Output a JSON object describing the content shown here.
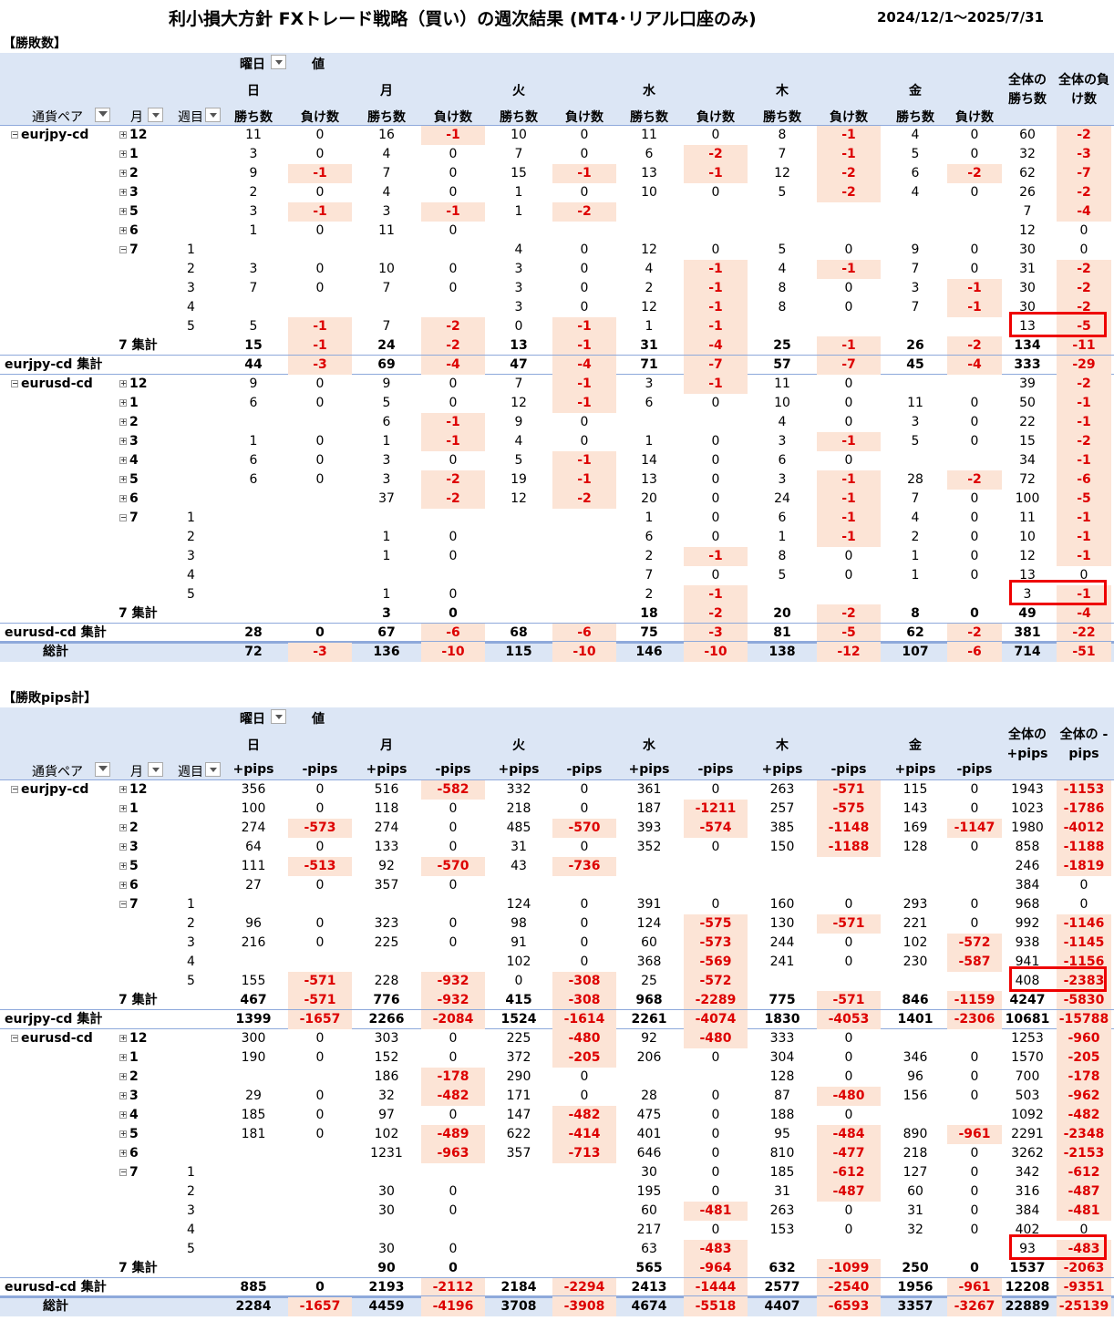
{
  "title": "利小損大方針 FXトレード戦略（買い）の週次結果 (MT4･リアル口座のみ)",
  "date_range": "2024/12/1～2025/7/31",
  "pivot_labels": {
    "weekday": "曜日",
    "value": "値",
    "pair": "通貨ペア",
    "month": "月",
    "week": "週目"
  },
  "days": [
    "日",
    "月",
    "火",
    "水",
    "木",
    "金"
  ],
  "counts": {
    "section": "【勝敗数】",
    "win": "勝ち数",
    "loss": "負け数",
    "total_win": "全体の勝ち数",
    "total_loss": "全体の負け数",
    "rows": [
      {
        "k": "p",
        "pair": "eurjpy-cd",
        "m": "12",
        "v": [
          "11",
          "0",
          "16",
          "-1",
          "10",
          "0",
          "11",
          "0",
          "8",
          "-1",
          "4",
          "0",
          "60",
          "-2"
        ]
      },
      {
        "k": "m",
        "m": "1",
        "v": [
          "3",
          "0",
          "4",
          "0",
          "7",
          "0",
          "6",
          "-2",
          "7",
          "-1",
          "5",
          "0",
          "32",
          "-3"
        ]
      },
      {
        "k": "m",
        "m": "2",
        "v": [
          "9",
          "-1",
          "7",
          "0",
          "15",
          "-1",
          "13",
          "-1",
          "12",
          "-2",
          "6",
          "-2",
          "62",
          "-7"
        ]
      },
      {
        "k": "m",
        "m": "3",
        "v": [
          "2",
          "0",
          "4",
          "0",
          "1",
          "0",
          "10",
          "0",
          "5",
          "-2",
          "4",
          "0",
          "26",
          "-2"
        ]
      },
      {
        "k": "m",
        "m": "5",
        "v": [
          "3",
          "-1",
          "3",
          "-1",
          "1",
          "-2",
          "",
          "",
          "",
          "",
          "",
          "",
          "7",
          "-4"
        ]
      },
      {
        "k": "m",
        "m": "6",
        "v": [
          "1",
          "0",
          "11",
          "0",
          "",
          "",
          "",
          "",
          "",
          "",
          "",
          "",
          "12",
          "0"
        ]
      },
      {
        "k": "m",
        "m": "7",
        "w": "1",
        "v": [
          "",
          "",
          "",
          "",
          "4",
          "0",
          "12",
          "0",
          "5",
          "0",
          "9",
          "0",
          "30",
          "0"
        ]
      },
      {
        "k": "w",
        "w": "2",
        "v": [
          "3",
          "0",
          "10",
          "0",
          "3",
          "0",
          "4",
          "-1",
          "4",
          "-1",
          "7",
          "0",
          "31",
          "-2"
        ]
      },
      {
        "k": "w",
        "w": "3",
        "v": [
          "7",
          "0",
          "7",
          "0",
          "3",
          "0",
          "2",
          "-1",
          "8",
          "0",
          "3",
          "-1",
          "30",
          "-2"
        ]
      },
      {
        "k": "w",
        "w": "4",
        "v": [
          "",
          "",
          "",
          "",
          "3",
          "0",
          "12",
          "-1",
          "8",
          "0",
          "7",
          "-1",
          "30",
          "-2"
        ]
      },
      {
        "k": "w",
        "w": "5",
        "v": [
          "5",
          "-1",
          "7",
          "-2",
          "0",
          "-1",
          "1",
          "-1",
          "",
          "",
          "",
          "",
          "13",
          "-5"
        ]
      },
      {
        "k": "s",
        "label": "7 集計",
        "v": [
          "15",
          "-1",
          "24",
          "-2",
          "13",
          "-1",
          "31",
          "-4",
          "25",
          "-1",
          "26",
          "-2",
          "134",
          "-11"
        ]
      },
      {
        "k": "t",
        "label": "eurjpy-cd 集計",
        "v": [
          "44",
          "-3",
          "69",
          "-4",
          "47",
          "-4",
          "71",
          "-7",
          "57",
          "-7",
          "45",
          "-4",
          "333",
          "-29"
        ]
      },
      {
        "k": "p",
        "pair": "eurusd-cd",
        "m": "12",
        "v": [
          "9",
          "0",
          "9",
          "0",
          "7",
          "-1",
          "3",
          "-1",
          "11",
          "0",
          "",
          "",
          "39",
          "-2"
        ]
      },
      {
        "k": "m",
        "m": "1",
        "v": [
          "6",
          "0",
          "5",
          "0",
          "12",
          "-1",
          "6",
          "0",
          "10",
          "0",
          "11",
          "0",
          "50",
          "-1"
        ]
      },
      {
        "k": "m",
        "m": "2",
        "v": [
          "",
          "",
          "6",
          "-1",
          "9",
          "0",
          "",
          "",
          "4",
          "0",
          "3",
          "0",
          "22",
          "-1"
        ]
      },
      {
        "k": "m",
        "m": "3",
        "v": [
          "1",
          "0",
          "1",
          "-1",
          "4",
          "0",
          "1",
          "0",
          "3",
          "-1",
          "5",
          "0",
          "15",
          "-2"
        ]
      },
      {
        "k": "m",
        "m": "4",
        "v": [
          "6",
          "0",
          "3",
          "0",
          "5",
          "-1",
          "14",
          "0",
          "6",
          "0",
          "",
          "",
          "34",
          "-1"
        ]
      },
      {
        "k": "m",
        "m": "5",
        "v": [
          "6",
          "0",
          "3",
          "-2",
          "19",
          "-1",
          "13",
          "0",
          "3",
          "-1",
          "28",
          "-2",
          "72",
          "-6"
        ]
      },
      {
        "k": "m",
        "m": "6",
        "v": [
          "",
          "",
          "37",
          "-2",
          "12",
          "-2",
          "20",
          "0",
          "24",
          "-1",
          "7",
          "0",
          "100",
          "-5"
        ]
      },
      {
        "k": "m",
        "m": "7",
        "w": "1",
        "v": [
          "",
          "",
          "",
          "",
          "",
          "",
          "1",
          "0",
          "6",
          "-1",
          "4",
          "0",
          "11",
          "-1"
        ]
      },
      {
        "k": "w",
        "w": "2",
        "v": [
          "",
          "",
          "1",
          "0",
          "",
          "",
          "6",
          "0",
          "1",
          "-1",
          "2",
          "0",
          "10",
          "-1"
        ]
      },
      {
        "k": "w",
        "w": "3",
        "v": [
          "",
          "",
          "1",
          "0",
          "",
          "",
          "2",
          "-1",
          "8",
          "0",
          "1",
          "0",
          "12",
          "-1"
        ]
      },
      {
        "k": "w",
        "w": "4",
        "v": [
          "",
          "",
          "",
          "",
          "",
          "",
          "7",
          "0",
          "5",
          "0",
          "1",
          "0",
          "13",
          "0"
        ]
      },
      {
        "k": "w",
        "w": "5",
        "v": [
          "",
          "",
          "1",
          "0",
          "",
          "",
          "2",
          "-1",
          "",
          "",
          "",
          "",
          "3",
          "-1"
        ]
      },
      {
        "k": "s",
        "label": "7 集計",
        "v": [
          "",
          "",
          "3",
          "0",
          "",
          "",
          "18",
          "-2",
          "20",
          "-2",
          "8",
          "0",
          "49",
          "-4"
        ]
      },
      {
        "k": "t",
        "label": "eurusd-cd 集計",
        "v": [
          "28",
          "0",
          "67",
          "-6",
          "68",
          "-6",
          "75",
          "-3",
          "81",
          "-5",
          "62",
          "-2",
          "381",
          "-22"
        ]
      },
      {
        "k": "g",
        "label": "総計",
        "v": [
          "72",
          "-3",
          "136",
          "-10",
          "115",
          "-10",
          "146",
          "-10",
          "138",
          "-12",
          "107",
          "-6",
          "714",
          "-51"
        ]
      }
    ]
  },
  "pips": {
    "section": "【勝敗pips計】",
    "win": "+pips",
    "loss": "-pips",
    "total_win": "全体の+pips",
    "total_loss": "全体の -pips",
    "rows": [
      {
        "k": "p",
        "pair": "eurjpy-cd",
        "m": "12",
        "v": [
          "356",
          "0",
          "516",
          "-582",
          "332",
          "0",
          "361",
          "0",
          "263",
          "-571",
          "115",
          "0",
          "1943",
          "-1153"
        ]
      },
      {
        "k": "m",
        "m": "1",
        "v": [
          "100",
          "0",
          "118",
          "0",
          "218",
          "0",
          "187",
          "-1211",
          "257",
          "-575",
          "143",
          "0",
          "1023",
          "-1786"
        ]
      },
      {
        "k": "m",
        "m": "2",
        "v": [
          "274",
          "-573",
          "274",
          "0",
          "485",
          "-570",
          "393",
          "-574",
          "385",
          "-1148",
          "169",
          "-1147",
          "1980",
          "-4012"
        ]
      },
      {
        "k": "m",
        "m": "3",
        "v": [
          "64",
          "0",
          "133",
          "0",
          "31",
          "0",
          "352",
          "0",
          "150",
          "-1188",
          "128",
          "0",
          "858",
          "-1188"
        ]
      },
      {
        "k": "m",
        "m": "5",
        "v": [
          "111",
          "-513",
          "92",
          "-570",
          "43",
          "-736",
          "",
          "",
          "",
          "",
          "",
          "",
          "246",
          "-1819"
        ]
      },
      {
        "k": "m",
        "m": "6",
        "v": [
          "27",
          "0",
          "357",
          "0",
          "",
          "",
          "",
          "",
          "",
          "",
          "",
          "",
          "384",
          "0"
        ]
      },
      {
        "k": "m",
        "m": "7",
        "w": "1",
        "v": [
          "",
          "",
          "",
          "",
          "124",
          "0",
          "391",
          "0",
          "160",
          "0",
          "293",
          "0",
          "968",
          "0"
        ]
      },
      {
        "k": "w",
        "w": "2",
        "v": [
          "96",
          "0",
          "323",
          "0",
          "98",
          "0",
          "124",
          "-575",
          "130",
          "-571",
          "221",
          "0",
          "992",
          "-1146"
        ]
      },
      {
        "k": "w",
        "w": "3",
        "v": [
          "216",
          "0",
          "225",
          "0",
          "91",
          "0",
          "60",
          "-573",
          "244",
          "0",
          "102",
          "-572",
          "938",
          "-1145"
        ]
      },
      {
        "k": "w",
        "w": "4",
        "v": [
          "",
          "",
          "",
          "",
          "102",
          "0",
          "368",
          "-569",
          "241",
          "0",
          "230",
          "-587",
          "941",
          "-1156"
        ]
      },
      {
        "k": "w",
        "w": "5",
        "v": [
          "155",
          "-571",
          "228",
          "-932",
          "0",
          "-308",
          "25",
          "-572",
          "",
          "",
          "",
          "",
          "408",
          "-2383"
        ]
      },
      {
        "k": "s",
        "label": "7 集計",
        "v": [
          "467",
          "-571",
          "776",
          "-932",
          "415",
          "-308",
          "968",
          "-2289",
          "775",
          "-571",
          "846",
          "-1159",
          "4247",
          "-5830"
        ]
      },
      {
        "k": "t",
        "label": "eurjpy-cd 集計",
        "v": [
          "1399",
          "-1657",
          "2266",
          "-2084",
          "1524",
          "-1614",
          "2261",
          "-4074",
          "1830",
          "-4053",
          "1401",
          "-2306",
          "10681",
          "-15788"
        ]
      },
      {
        "k": "p",
        "pair": "eurusd-cd",
        "m": "12",
        "v": [
          "300",
          "0",
          "303",
          "0",
          "225",
          "-480",
          "92",
          "-480",
          "333",
          "0",
          "",
          "",
          "1253",
          "-960"
        ]
      },
      {
        "k": "m",
        "m": "1",
        "v": [
          "190",
          "0",
          "152",
          "0",
          "372",
          "-205",
          "206",
          "0",
          "304",
          "0",
          "346",
          "0",
          "1570",
          "-205"
        ]
      },
      {
        "k": "m",
        "m": "2",
        "v": [
          "",
          "",
          "186",
          "-178",
          "290",
          "0",
          "",
          "",
          "128",
          "0",
          "96",
          "0",
          "700",
          "-178"
        ]
      },
      {
        "k": "m",
        "m": "3",
        "v": [
          "29",
          "0",
          "32",
          "-482",
          "171",
          "0",
          "28",
          "0",
          "87",
          "-480",
          "156",
          "0",
          "503",
          "-962"
        ]
      },
      {
        "k": "m",
        "m": "4",
        "v": [
          "185",
          "0",
          "97",
          "0",
          "147",
          "-482",
          "475",
          "0",
          "188",
          "0",
          "",
          "",
          "1092",
          "-482"
        ]
      },
      {
        "k": "m",
        "m": "5",
        "v": [
          "181",
          "0",
          "102",
          "-489",
          "622",
          "-414",
          "401",
          "0",
          "95",
          "-484",
          "890",
          "-961",
          "2291",
          "-2348"
        ]
      },
      {
        "k": "m",
        "m": "6",
        "v": [
          "",
          "",
          "1231",
          "-963",
          "357",
          "-713",
          "646",
          "0",
          "810",
          "-477",
          "218",
          "0",
          "3262",
          "-2153"
        ]
      },
      {
        "k": "m",
        "m": "7",
        "w": "1",
        "v": [
          "",
          "",
          "",
          "",
          "",
          "",
          "30",
          "0",
          "185",
          "-612",
          "127",
          "0",
          "342",
          "-612"
        ]
      },
      {
        "k": "w",
        "w": "2",
        "v": [
          "",
          "",
          "30",
          "0",
          "",
          "",
          "195",
          "0",
          "31",
          "-487",
          "60",
          "0",
          "316",
          "-487"
        ]
      },
      {
        "k": "w",
        "w": "3",
        "v": [
          "",
          "",
          "30",
          "0",
          "",
          "",
          "60",
          "-481",
          "263",
          "0",
          "31",
          "0",
          "384",
          "-481"
        ]
      },
      {
        "k": "w",
        "w": "4",
        "v": [
          "",
          "",
          "",
          "",
          "",
          "",
          "217",
          "0",
          "153",
          "0",
          "32",
          "0",
          "402",
          "0"
        ]
      },
      {
        "k": "w",
        "w": "5",
        "v": [
          "",
          "",
          "30",
          "0",
          "",
          "",
          "63",
          "-483",
          "",
          "",
          "",
          "",
          "93",
          "-483"
        ]
      },
      {
        "k": "s",
        "label": "7 集計",
        "v": [
          "",
          "",
          "90",
          "0",
          "",
          "",
          "565",
          "-964",
          "632",
          "-1099",
          "250",
          "0",
          "1537",
          "-2063"
        ]
      },
      {
        "k": "t",
        "label": "eurusd-cd 集計",
        "v": [
          "885",
          "0",
          "2193",
          "-2112",
          "2184",
          "-2294",
          "2413",
          "-1444",
          "2577",
          "-2540",
          "1956",
          "-961",
          "12208",
          "-9351"
        ]
      },
      {
        "k": "g",
        "label": "総計",
        "v": [
          "2284",
          "-1657",
          "4459",
          "-4196",
          "3708",
          "-3908",
          "4674",
          "-5518",
          "4407",
          "-6593",
          "3357",
          "-3267",
          "22889",
          "-25139"
        ]
      }
    ]
  },
  "colors": {
    "header_bg": "#dce6f5",
    "negative_bg": "#fce4d6",
    "negative_text": "#dd0000",
    "highlight_box": "#ee0000"
  }
}
